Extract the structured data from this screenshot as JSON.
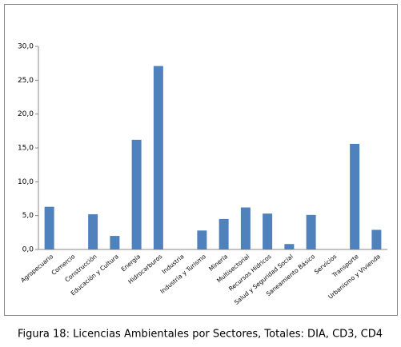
{
  "chart_data": {
    "type": "bar",
    "caption": "Figura 18:  Licencias Ambientales por Sectores, Totales: DIA, CD3, CD4",
    "categories": [
      "Agropecuario",
      "Comercio",
      "Construcción",
      "Educación y Cultura",
      "Energía",
      "Hidrocarburos",
      "Industria",
      "Industria y Turismo",
      "Minería",
      "Multisectorial",
      "Recursos Hídricos",
      "Salud y Seguridad Social",
      "Saneamiento Básico",
      "Servicios",
      "Transporte",
      "Urbanismo y Vivienda"
    ],
    "values": [
      6.3,
      0,
      5.2,
      2.0,
      16.2,
      27.1,
      0,
      2.8,
      4.5,
      6.2,
      5.3,
      0.8,
      5.1,
      0,
      15.6,
      2.9
    ],
    "color": "#4f81bd",
    "ylim": [
      0,
      30
    ],
    "yticks": [
      {
        "value": 0,
        "label": "0,0"
      },
      {
        "value": 5,
        "label": "5,0"
      },
      {
        "value": 10,
        "label": "10,0"
      },
      {
        "value": 15,
        "label": "15,0"
      },
      {
        "value": 20,
        "label": "20,0"
      },
      {
        "value": 25,
        "label": "25,0"
      },
      {
        "value": 30,
        "label": "30,0"
      }
    ],
    "grid": false
  }
}
